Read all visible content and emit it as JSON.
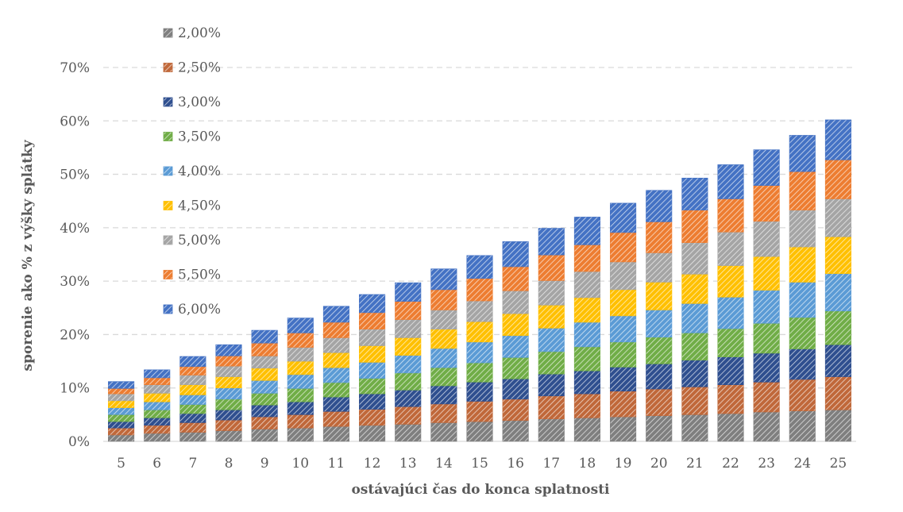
{
  "chart_data": {
    "type": "bar",
    "stacked": true,
    "fill_pattern": "diagonal-hatch",
    "categories": [
      "5",
      "6",
      "7",
      "8",
      "9",
      "10",
      "11",
      "12",
      "13",
      "14",
      "15",
      "16",
      "17",
      "18",
      "19",
      "20",
      "21",
      "22",
      "23",
      "24",
      "25"
    ],
    "series": [
      {
        "name": "2,00%",
        "color": "#7f7f7f",
        "values": [
          1.2,
          1.5,
          1.7,
          2.0,
          2.3,
          2.5,
          2.8,
          3.0,
          3.2,
          3.5,
          3.7,
          3.9,
          4.2,
          4.4,
          4.6,
          4.8,
          5.0,
          5.2,
          5.5,
          5.7,
          5.9
        ]
      },
      {
        "name": "2,50%",
        "color": "#c0683a",
        "values": [
          1.3,
          1.5,
          1.8,
          2.0,
          2.3,
          2.5,
          2.8,
          3.0,
          3.3,
          3.5,
          3.8,
          4.0,
          4.3,
          4.5,
          4.8,
          5.0,
          5.2,
          5.4,
          5.6,
          5.9,
          6.2
        ]
      },
      {
        "name": "3,00%",
        "color": "#2f4f8f",
        "values": [
          1.2,
          1.4,
          1.7,
          1.9,
          2.2,
          2.4,
          2.7,
          2.9,
          3.1,
          3.4,
          3.6,
          3.8,
          4.1,
          4.3,
          4.5,
          4.7,
          5.0,
          5.2,
          5.4,
          5.7,
          6.0
        ]
      },
      {
        "name": "3,50%",
        "color": "#70ad47",
        "values": [
          1.3,
          1.5,
          1.7,
          2.0,
          2.2,
          2.5,
          2.7,
          2.9,
          3.2,
          3.4,
          3.6,
          4.0,
          4.2,
          4.5,
          4.7,
          5.0,
          5.1,
          5.3,
          5.6,
          5.9,
          6.3
        ]
      },
      {
        "name": "4,00%",
        "color": "#5b9bd5",
        "values": [
          1.3,
          1.5,
          1.8,
          2.1,
          2.4,
          2.6,
          2.8,
          3.0,
          3.3,
          3.6,
          3.9,
          4.1,
          4.4,
          4.6,
          4.9,
          5.1,
          5.5,
          5.9,
          6.2,
          6.6,
          7.0
        ]
      },
      {
        "name": "4,50%",
        "color": "#ffc000",
        "values": [
          1.3,
          1.6,
          1.9,
          2.1,
          2.3,
          2.5,
          2.8,
          3.1,
          3.3,
          3.6,
          3.8,
          4.1,
          4.3,
          4.6,
          4.9,
          5.2,
          5.5,
          5.9,
          6.3,
          6.6,
          6.9
        ]
      },
      {
        "name": "5,00%",
        "color": "#a5a5a5",
        "values": [
          1.3,
          1.6,
          1.8,
          2.0,
          2.3,
          2.6,
          2.8,
          3.1,
          3.4,
          3.6,
          3.9,
          4.3,
          4.6,
          4.9,
          5.2,
          5.5,
          5.9,
          6.3,
          6.6,
          6.9,
          7.1
        ]
      },
      {
        "name": "5,50%",
        "color": "#ed7d31",
        "values": [
          1.0,
          1.3,
          1.6,
          1.9,
          2.4,
          2.7,
          2.9,
          3.1,
          3.4,
          3.8,
          4.2,
          4.5,
          4.8,
          5.0,
          5.5,
          5.8,
          6.1,
          6.2,
          6.7,
          7.2,
          7.3
        ]
      },
      {
        "name": "6,00%",
        "color": "#4472c4",
        "values": [
          1.3,
          1.5,
          1.9,
          2.1,
          2.4,
          2.8,
          3.0,
          3.4,
          3.5,
          3.9,
          4.3,
          4.7,
          5.0,
          5.2,
          5.5,
          5.9,
          6.0,
          6.4,
          6.7,
          6.8,
          7.5
        ]
      }
    ],
    "ylim": [
      0,
      70
    ],
    "ytick_labels": [
      "0%",
      "10%",
      "20%",
      "30%",
      "40%",
      "50%",
      "60%",
      "70%"
    ],
    "xlabel": "ostávajúci čas do konca splatnosti",
    "ylabel": "sporenie ako % z výšky splátky",
    "grid": true,
    "legend_position": "top-left"
  }
}
